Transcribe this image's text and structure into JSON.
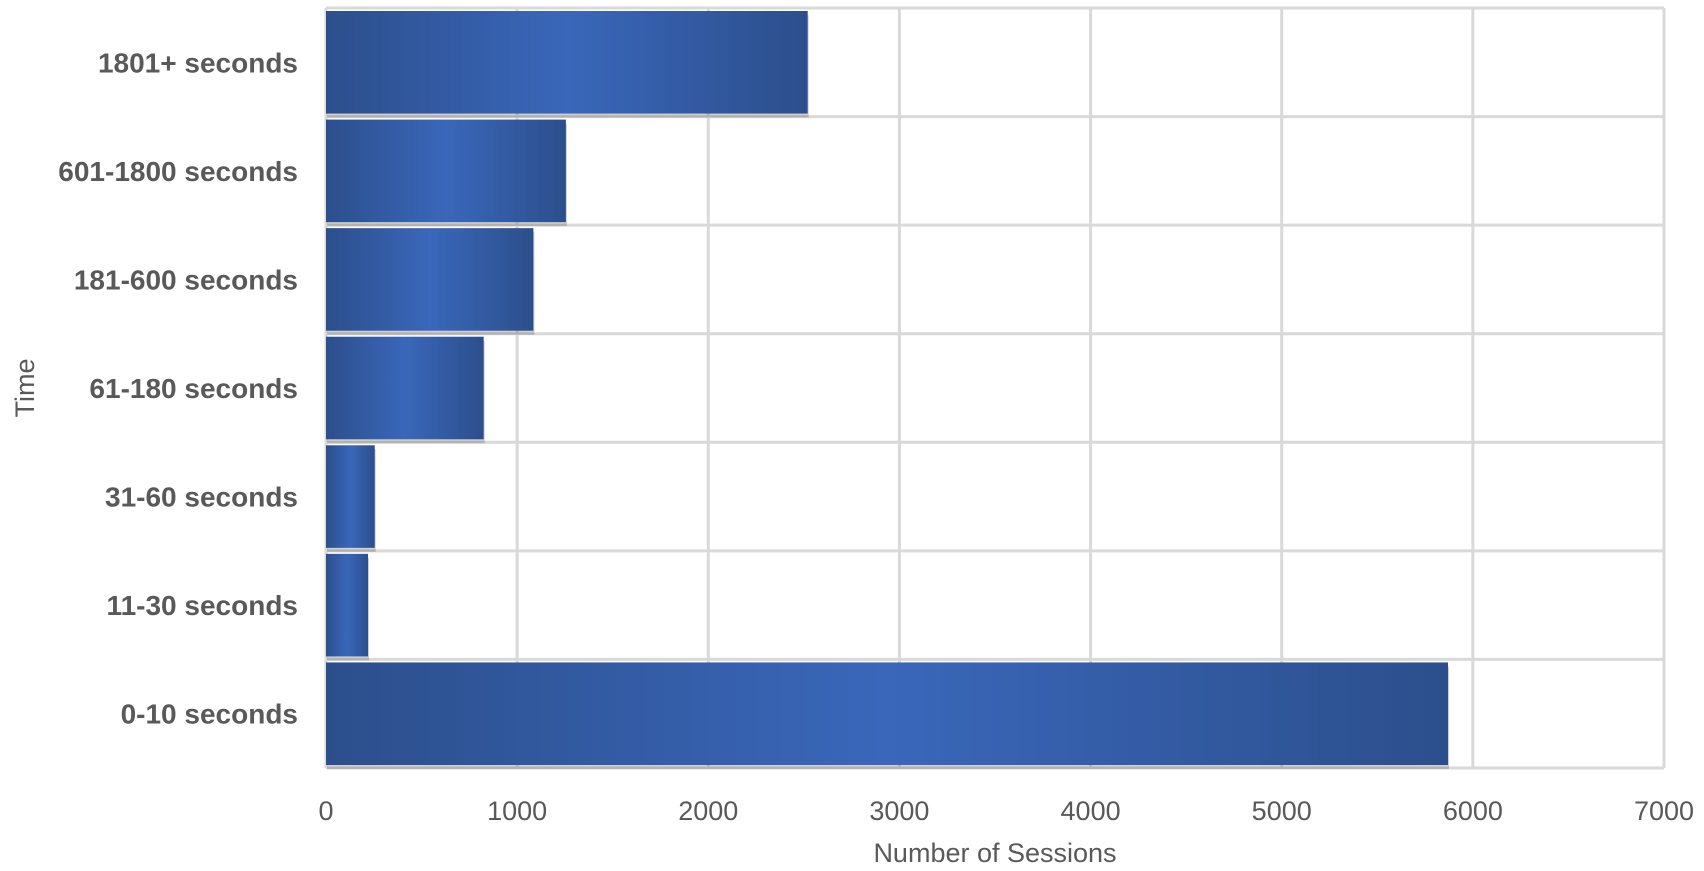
{
  "chart_data": {
    "type": "bar",
    "orientation": "horizontal",
    "categories": [
      "0-10 seconds",
      "11-30 seconds",
      "31-60 seconds",
      "61-180 seconds",
      "181-600 seconds",
      "601-1800 seconds",
      "1801+ seconds"
    ],
    "values": [
      5870,
      220,
      255,
      825,
      1085,
      1255,
      2520
    ],
    "xlabel": "Number of Sessions",
    "ylabel": "Time",
    "xlim": [
      0,
      7000
    ],
    "xticks": [
      "0",
      "1000",
      "2000",
      "3000",
      "4000",
      "5000",
      "6000",
      "7000"
    ],
    "grid": true,
    "legend": "none",
    "colors": {
      "bar_dark": "#2c4f8c",
      "bar_light": "#3a67ba",
      "grid": "#d9d9d9",
      "text": "#595959"
    }
  }
}
